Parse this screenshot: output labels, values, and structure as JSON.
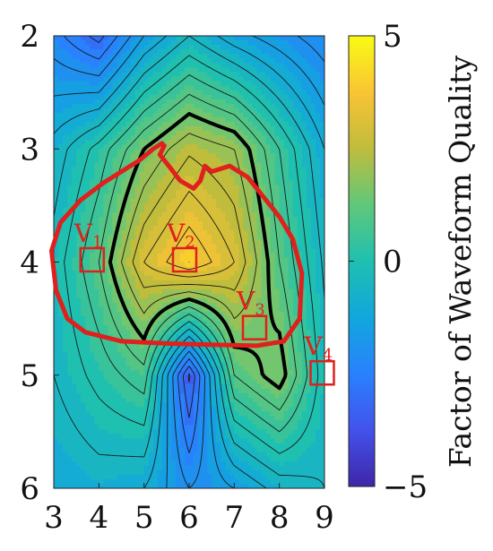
{
  "chart_data": {
    "type": "heatmap",
    "title": "",
    "xlabel": "",
    "ylabel": "",
    "x_ticks": [
      "3",
      "4",
      "5",
      "6",
      "7",
      "8",
      "9"
    ],
    "y_ticks": [
      "2",
      "3",
      "4",
      "5",
      "6"
    ],
    "xlim": [
      3,
      9
    ],
    "ylim": [
      2,
      6
    ],
    "y_reversed": true,
    "colorbar": {
      "label": "Factor of Waveform Quality",
      "ticks": [
        "5",
        "0",
        "−5"
      ],
      "range": [
        -5,
        5
      ],
      "colormap": "parula"
    },
    "x": [
      3,
      4,
      5,
      6,
      7,
      8,
      9
    ],
    "y": [
      2,
      3,
      4,
      5,
      6
    ],
    "z": [
      [
        -2.3,
        -3.2,
        -1.5,
        -0.5,
        -1.3,
        -1.8,
        -2.3
      ],
      [
        -0.8,
        0.2,
        1.5,
        2.4,
        2.0,
        0.5,
        -1.0
      ],
      [
        -0.3,
        1.0,
        3.0,
        4.0,
        3.0,
        1.0,
        -0.6
      ],
      [
        -0.5,
        0.2,
        0.8,
        -3.6,
        1.0,
        1.8,
        -0.3
      ],
      [
        -1.0,
        -0.8,
        -1.0,
        -2.0,
        -1.5,
        -0.8,
        -0.5
      ]
    ],
    "annotations": [
      {
        "label": "V",
        "sub": "1",
        "x": 3.85,
        "y": 3.98
      },
      {
        "label": "V",
        "sub": "2",
        "x": 5.9,
        "y": 3.98
      },
      {
        "label": "V",
        "sub": "3",
        "x": 7.45,
        "y": 4.58
      },
      {
        "label": "V",
        "sub": "4",
        "x": 8.95,
        "y": 4.98
      }
    ],
    "colors": {
      "annotation": "#e0201c",
      "bold_contour": "#000000",
      "thin_contour": "#1a1a1a"
    }
  }
}
